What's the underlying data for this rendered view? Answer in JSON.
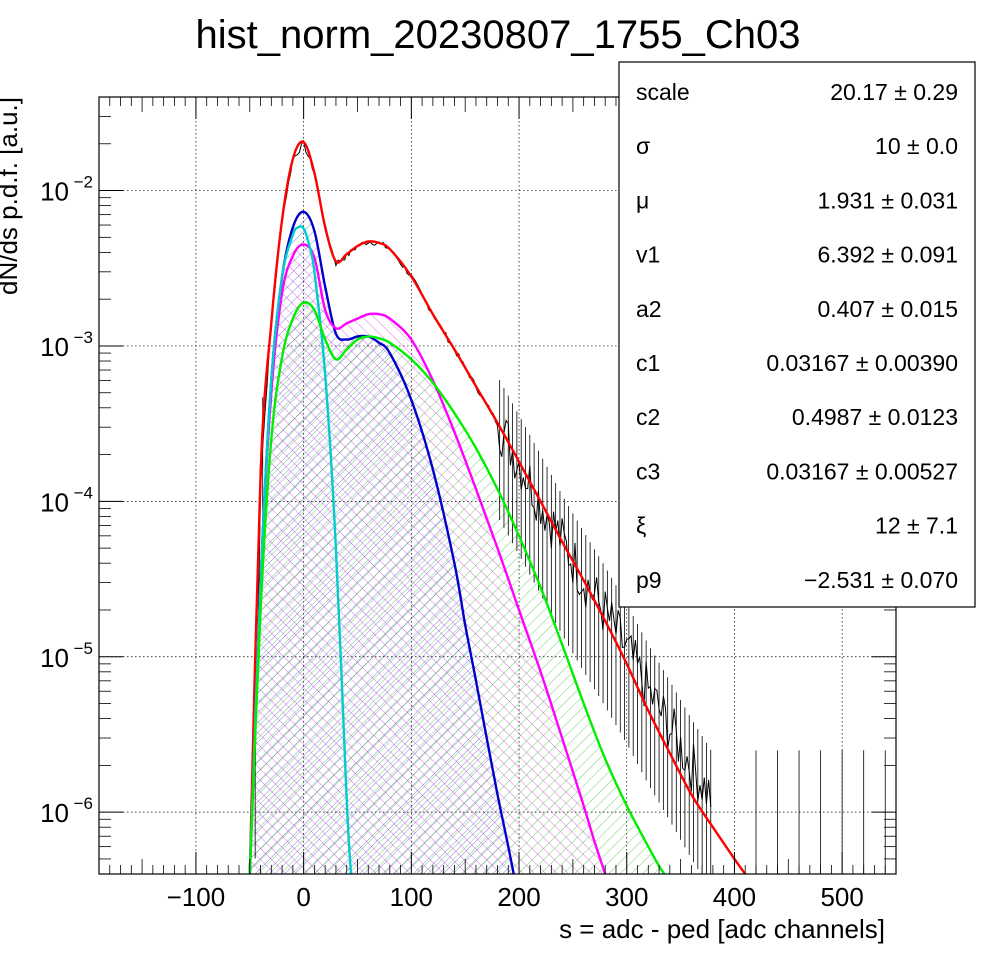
{
  "chart_data": {
    "type": "line",
    "title": "hist_norm_20230807_1755_Ch03",
    "xlabel": "s = adc - ped [adc channels]",
    "ylabel": "dN/ds p.d.f. [a.u.]",
    "x_scale": "linear",
    "y_scale": "log",
    "xlim": [
      -190,
      550
    ],
    "ylim": [
      4e-07,
      0.04
    ],
    "x_ticks": [
      -100,
      0,
      100,
      200,
      300,
      400,
      500
    ],
    "x_tick_labels": [
      "−100",
      "0",
      "100",
      "200",
      "300",
      "400",
      "500"
    ],
    "y_tick_mantissa": [
      "10",
      "10",
      "10",
      "10",
      "10"
    ],
    "y_tick_exponents": [
      "−6",
      "−5",
      "−4",
      "−3",
      "−2"
    ],
    "y_tick_values": [
      1e-06,
      1e-05,
      0.0001,
      0.001,
      0.01
    ],
    "grid": true,
    "series": [
      {
        "color": "#000000",
        "style": "histogram",
        "x": [
          -45,
          -40,
          -30,
          -20,
          -10,
          0,
          10,
          20,
          30,
          40,
          50,
          60,
          70,
          80,
          100,
          120,
          140,
          160,
          180,
          200,
          220,
          240,
          260,
          280,
          300,
          320,
          340,
          360,
          380
        ],
        "y": [
          2e-06,
          0.00015,
          0.0014,
          0.0065,
          0.016,
          0.02,
          0.013,
          0.0058,
          0.0034,
          0.0038,
          0.0044,
          0.0047,
          0.0046,
          0.0042,
          0.0028,
          0.0016,
          0.00095,
          0.00055,
          0.00032,
          0.00018,
          0.0001,
          5.5e-05,
          3.2e-05,
          1.9e-05,
          1.1e-05,
          6e-06,
          3.5e-06,
          2e-06,
          1.2e-06
        ]
      },
      {
        "color": "#ff0000",
        "x": [
          -50,
          -40,
          -30,
          -20,
          -10,
          0,
          10,
          20,
          30,
          40,
          50,
          60,
          70,
          80,
          100,
          120,
          140,
          160,
          180,
          200,
          220,
          240,
          260,
          280,
          300,
          320,
          340,
          360,
          380,
          400,
          410
        ],
        "y": [
          4e-07,
          0.00015,
          0.0014,
          0.0065,
          0.016,
          0.0205,
          0.013,
          0.0058,
          0.0035,
          0.0039,
          0.0044,
          0.0047,
          0.0046,
          0.0042,
          0.0028,
          0.0016,
          0.00095,
          0.00055,
          0.00032,
          0.00018,
          0.0001,
          5.5e-05,
          3.1e-05,
          1.7e-05,
          9e-06,
          4.5e-06,
          2.4e-06,
          1.3e-06,
          8e-07,
          5e-07,
          4e-07
        ]
      },
      {
        "color": "#0000cc",
        "x": [
          -50,
          -40,
          -30,
          -20,
          -10,
          0,
          10,
          20,
          30,
          40,
          50,
          60,
          70,
          80,
          100,
          120,
          140,
          150,
          160,
          170,
          180,
          190,
          195
        ],
        "y": [
          4e-07,
          3e-05,
          0.0006,
          0.0028,
          0.0058,
          0.0073,
          0.0055,
          0.0024,
          0.0012,
          0.0011,
          0.00115,
          0.00115,
          0.00105,
          0.0009,
          0.00045,
          0.00016,
          4e-05,
          1.6e-05,
          7e-06,
          3e-06,
          1.3e-06,
          6e-07,
          4e-07
        ]
      },
      {
        "color": "#ff00ff",
        "x": [
          -50,
          -40,
          -30,
          -20,
          -10,
          0,
          10,
          20,
          30,
          40,
          50,
          60,
          70,
          80,
          100,
          120,
          140,
          160,
          180,
          200,
          220,
          240,
          260,
          270,
          280
        ],
        "y": [
          4e-07,
          3e-05,
          0.0005,
          0.0022,
          0.0038,
          0.0045,
          0.0037,
          0.0017,
          0.0013,
          0.0014,
          0.0015,
          0.0016,
          0.0016,
          0.0015,
          0.0011,
          0.0006,
          0.00028,
          0.00012,
          5e-05,
          2e-05,
          8e-06,
          3e-06,
          1.1e-06,
          6.5e-07,
          4e-07
        ]
      },
      {
        "color": "#00cccc",
        "x": [
          -50,
          -40,
          -30,
          -20,
          -10,
          -5,
          0,
          5,
          10,
          20,
          30,
          40,
          44
        ],
        "y": [
          4e-07,
          3e-05,
          0.0006,
          0.0028,
          0.0052,
          0.0058,
          0.0057,
          0.0045,
          0.003,
          0.00065,
          5e-05,
          1.2e-06,
          4e-07
        ]
      },
      {
        "color": "#00ee00",
        "x": [
          -50,
          -40,
          -30,
          -20,
          -10,
          0,
          10,
          20,
          30,
          40,
          50,
          60,
          70,
          80,
          100,
          120,
          140,
          160,
          180,
          200,
          220,
          240,
          260,
          280,
          300,
          320,
          330,
          335
        ],
        "y": [
          4e-07,
          2e-05,
          0.00025,
          0.00085,
          0.0015,
          0.0019,
          0.0017,
          0.0011,
          0.00082,
          0.00095,
          0.0011,
          0.00115,
          0.00112,
          0.00105,
          0.00082,
          0.00058,
          0.00037,
          0.00022,
          0.00012,
          6e-05,
          2.8e-05,
          1.2e-05,
          5e-06,
          2.2e-06,
          1.1e-06,
          6e-07,
          4.5e-07,
          4e-07
        ]
      }
    ]
  },
  "stats": {
    "rows": [
      {
        "name": "scale",
        "value": "20.17 ± 0.29"
      },
      {
        "name": "σ",
        "value": "10 ± 0.0"
      },
      {
        "name": "μ",
        "value": "1.931 ± 0.031"
      },
      {
        "name": "v1",
        "value": "6.392 ± 0.091"
      },
      {
        "name": "a2",
        "value": "0.407 ± 0.015"
      },
      {
        "name": "c1",
        "value": "0.03167 ± 0.00390"
      },
      {
        "name": "c2",
        "value": "0.4987 ± 0.0123"
      },
      {
        "name": "c3",
        "value": "0.03167 ± 0.00527"
      },
      {
        "name": "ξ",
        "value": "12 ± 7.1"
      },
      {
        "name": "p9",
        "value": "−2.531 ± 0.070"
      }
    ]
  }
}
